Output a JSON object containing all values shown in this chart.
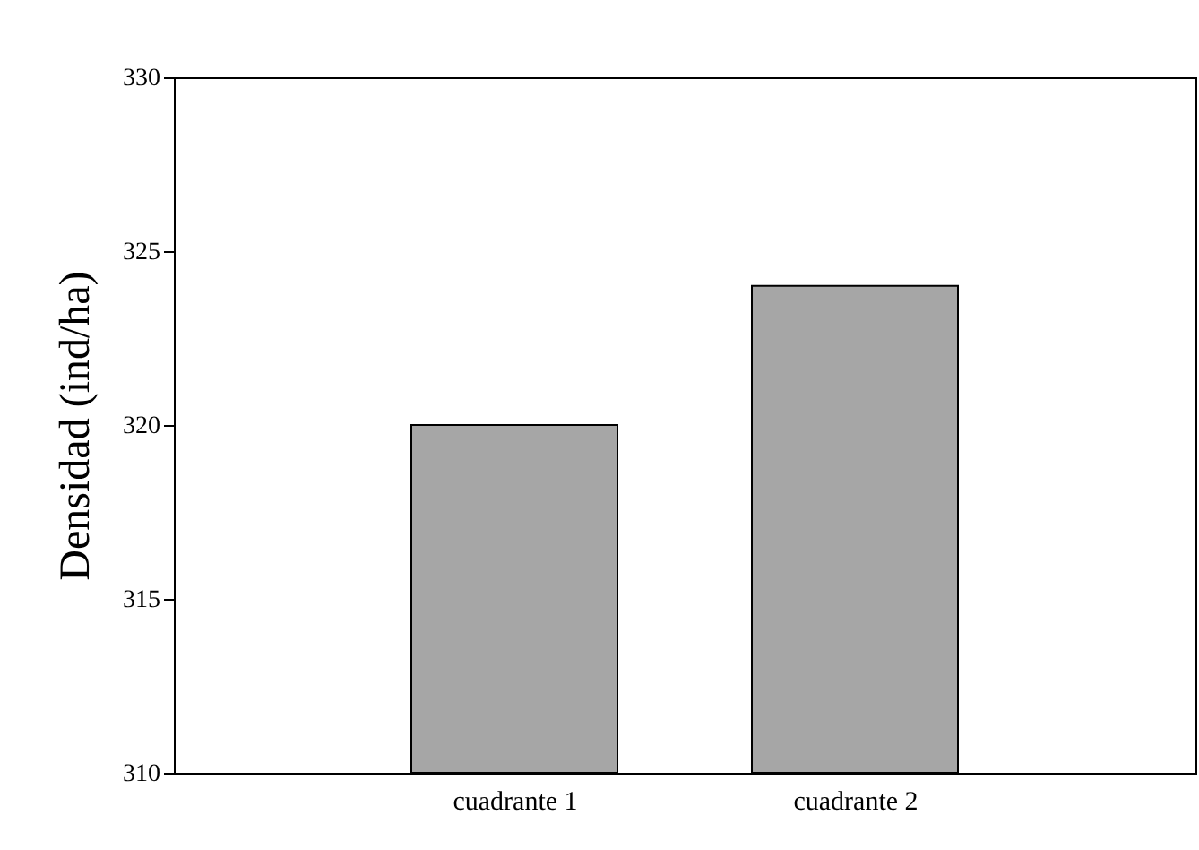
{
  "chart_data": {
    "type": "bar",
    "ylabel": "Densidad (ind/ha)",
    "categories": [
      "cuadrante 1",
      "cuadrante 2"
    ],
    "values": [
      320,
      324
    ],
    "color": "#a6a6a6",
    "ylim": [
      310,
      330
    ],
    "yticks": [
      310,
      315,
      320,
      325,
      330
    ],
    "grid": false
  }
}
